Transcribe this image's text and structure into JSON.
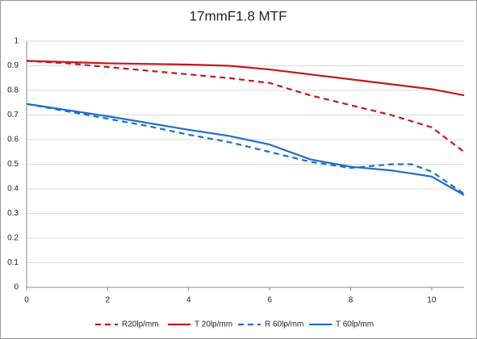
{
  "chart_data": {
    "type": "line",
    "title": "17mmF1.8  MTF",
    "xlim": [
      0,
      10.8
    ],
    "xticks": [
      0,
      2,
      4,
      6,
      8,
      10
    ],
    "ylim": [
      0,
      1
    ],
    "yticks": [
      0,
      0.1,
      0.2,
      0.3,
      0.4,
      0.5,
      0.6,
      0.7,
      0.8,
      0.9,
      1
    ],
    "grid": true,
    "legend": "bottom",
    "series": [
      {
        "name": "R20lp/mm",
        "color": "#c0191f",
        "dashed": true,
        "x": [
          0,
          1,
          2,
          3,
          4,
          5,
          6,
          7,
          8,
          9,
          10,
          10.8
        ],
        "values": [
          0.92,
          0.91,
          0.895,
          0.88,
          0.865,
          0.85,
          0.83,
          0.78,
          0.74,
          0.7,
          0.65,
          0.55
        ]
      },
      {
        "name": "T 20lp/mm",
        "color": "#c0191f",
        "dashed": false,
        "x": [
          0,
          2,
          4,
          5,
          6,
          7,
          8,
          9,
          10,
          10.8
        ],
        "values": [
          0.92,
          0.91,
          0.905,
          0.9,
          0.885,
          0.865,
          0.845,
          0.825,
          0.805,
          0.78
        ]
      },
      {
        "name": "R 60lp/mm",
        "color": "#1f6fc5",
        "dashed": true,
        "x": [
          0,
          1,
          2,
          3,
          4,
          5,
          6,
          7,
          8,
          9,
          9.5,
          10,
          10.8
        ],
        "values": [
          0.745,
          0.715,
          0.685,
          0.655,
          0.62,
          0.59,
          0.55,
          0.51,
          0.485,
          0.5,
          0.5,
          0.47,
          0.38
        ]
      },
      {
        "name": "T 60lp/mm",
        "color": "#1f6fc5",
        "dashed": false,
        "x": [
          0,
          2,
          4,
          5,
          6,
          7,
          8,
          9,
          10,
          10.8
        ],
        "values": [
          0.745,
          0.695,
          0.64,
          0.615,
          0.58,
          0.52,
          0.49,
          0.475,
          0.45,
          0.375
        ]
      }
    ]
  }
}
